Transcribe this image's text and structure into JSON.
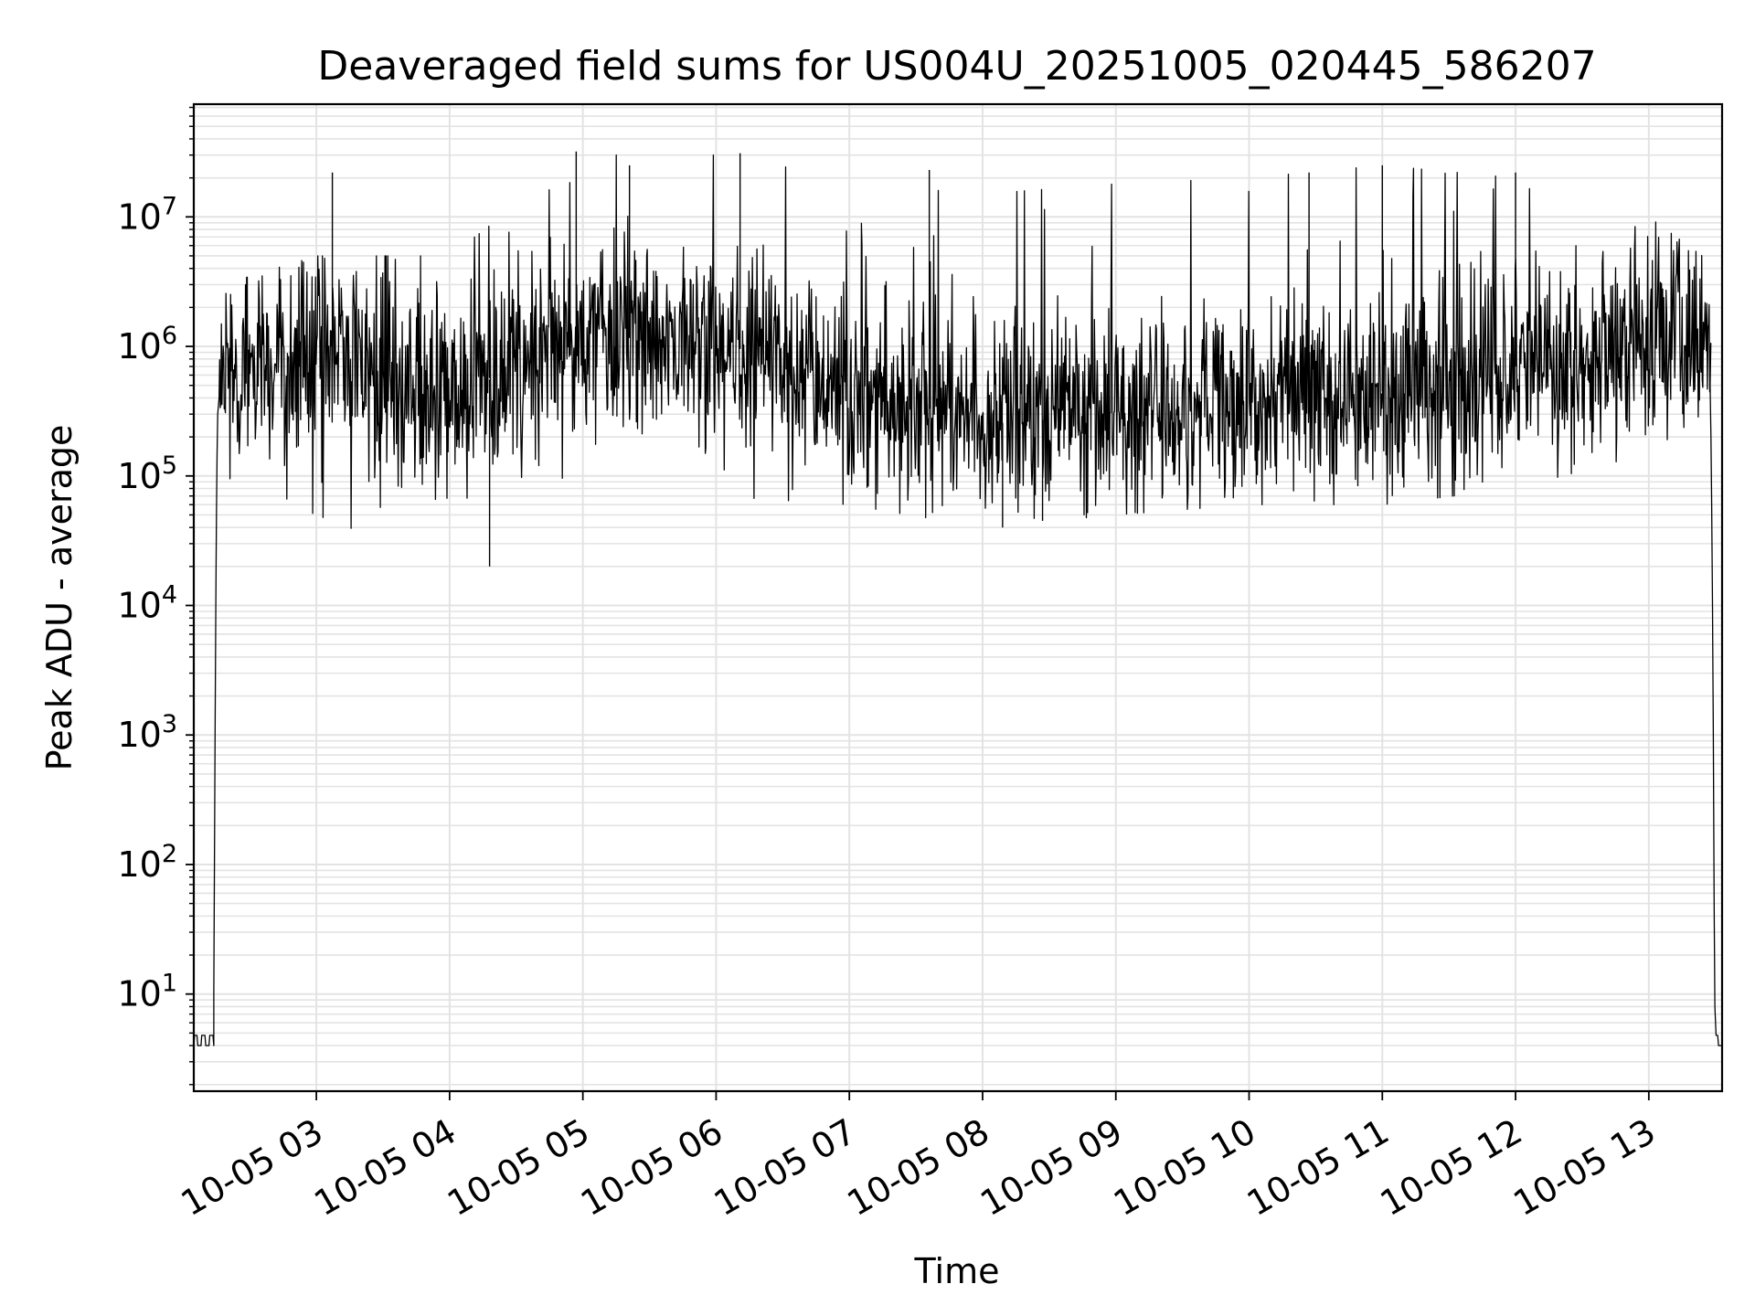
{
  "chart_data": {
    "type": "line",
    "title": "Deaveraged field sums for US004U_20251005_020445_586207",
    "xlabel": "Time",
    "ylabel": "Peak ADU - average",
    "yscale": "log",
    "ylim_log10": [
      0.25,
      7.87
    ],
    "xlim_hours": [
      2.08,
      13.55
    ],
    "grid": true,
    "line_color": "#000000",
    "grid_color": "#e3e3e3",
    "x_ticks": [
      {
        "hour": 3,
        "label": "10-05 03"
      },
      {
        "hour": 4,
        "label": "10-05 04"
      },
      {
        "hour": 5,
        "label": "10-05 05"
      },
      {
        "hour": 6,
        "label": "10-05 06"
      },
      {
        "hour": 7,
        "label": "10-05 07"
      },
      {
        "hour": 8,
        "label": "10-05 08"
      },
      {
        "hour": 9,
        "label": "10-05 09"
      },
      {
        "hour": 10,
        "label": "10-05 10"
      },
      {
        "hour": 11,
        "label": "10-05 11"
      },
      {
        "hour": 12,
        "label": "10-05 12"
      },
      {
        "hour": 13,
        "label": "10-05 13"
      }
    ],
    "y_ticks": [
      {
        "exp": 1,
        "base": "10",
        "sup": "1"
      },
      {
        "exp": 2,
        "base": "10",
        "sup": "2"
      },
      {
        "exp": 3,
        "base": "10",
        "sup": "3"
      },
      {
        "exp": 4,
        "base": "10",
        "sup": "4"
      },
      {
        "exp": 5,
        "base": "10",
        "sup": "5"
      },
      {
        "exp": 6,
        "base": "10",
        "sup": "6"
      },
      {
        "exp": 7,
        "base": "10",
        "sup": "7"
      }
    ],
    "series": [
      {
        "name": "deaveraged field sum",
        "baseline_value": 4,
        "start_hour": 2.26,
        "end_hour": 13.48,
        "envelope": [
          {
            "hour": 2.3,
            "median": 600000,
            "max": 3000000,
            "min": 100000
          },
          {
            "hour": 3.0,
            "median": 800000,
            "max": 5000000,
            "min": 50000
          },
          {
            "hour": 4.0,
            "median": 400000,
            "max": 5000000,
            "min": 20000
          },
          {
            "hour": 5.0,
            "median": 1200000,
            "max": 30000000,
            "min": 70000
          },
          {
            "hour": 6.0,
            "median": 1100000,
            "max": 30000000,
            "min": 70000
          },
          {
            "hour": 7.0,
            "median": 500000,
            "max": 20000000,
            "min": 60000
          },
          {
            "hour": 8.0,
            "median": 250000,
            "max": 15000000,
            "min": 40000
          },
          {
            "hour": 9.0,
            "median": 300000,
            "max": 18000000,
            "min": 50000
          },
          {
            "hour": 10.0,
            "median": 350000,
            "max": 20000000,
            "min": 60000
          },
          {
            "hour": 11.0,
            "median": 450000,
            "max": 25000000,
            "min": 60000
          },
          {
            "hour": 12.0,
            "median": 700000,
            "max": 20000000,
            "min": 80000
          },
          {
            "hour": 13.0,
            "median": 1000000,
            "max": 10000000,
            "min": 150000
          },
          {
            "hour": 13.4,
            "median": 1000000,
            "max": 5000000,
            "min": 300000
          }
        ],
        "peaks": [
          {
            "hour": 4.95,
            "value": 32000000
          },
          {
            "hour": 6.18,
            "value": 31000000
          },
          {
            "hour": 11.0,
            "value": 25000000
          },
          {
            "hour": 3.12,
            "value": 22000000
          },
          {
            "hour": 5.35,
            "value": 25000000
          },
          {
            "hour": 12.0,
            "value": 22000000
          },
          {
            "hour": 10.45,
            "value": 22000000
          },
          {
            "hour": 7.6,
            "value": 23000000
          }
        ],
        "dips": [
          {
            "hour": 4.3,
            "value": 20000
          },
          {
            "hour": 8.15,
            "value": 40000
          },
          {
            "hour": 8.45,
            "value": 45000
          }
        ]
      }
    ]
  }
}
